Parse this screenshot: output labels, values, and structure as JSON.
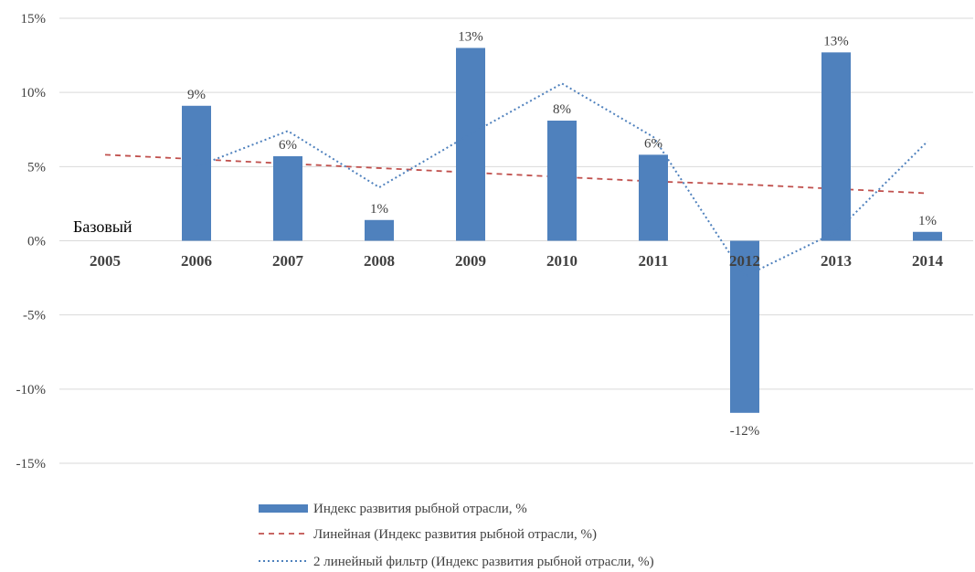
{
  "chart_data": {
    "type": "bar",
    "categories": [
      "2005",
      "2006",
      "2007",
      "2008",
      "2009",
      "2010",
      "2011",
      "2012",
      "2013",
      "2014"
    ],
    "series": [
      {
        "name": "Индекс развития рыбной отрасли, %",
        "type": "bar",
        "color": "#4f81bd",
        "values": [
          null,
          9.1,
          5.7,
          1.4,
          13.0,
          8.1,
          5.8,
          -11.6,
          12.7,
          0.6
        ],
        "data_labels": [
          "",
          "9%",
          "6%",
          "1%",
          "13%",
          "8%",
          "6%",
          "-12%",
          "13%",
          "1%"
        ]
      },
      {
        "name": "Линейная (Индекс развития рыбной отрасли, %)",
        "type": "line",
        "style": "dashed",
        "color": "#c0504d",
        "values": [
          5.8,
          5.5,
          5.2,
          4.9,
          4.6,
          4.3,
          4.0,
          3.8,
          3.5,
          3.2
        ]
      },
      {
        "name": "2 линейный фильтр (Индекс развития рыбной отрасли, %)",
        "type": "line",
        "style": "dotted",
        "color": "#4f81bd",
        "values": [
          null,
          5.0,
          7.4,
          3.6,
          7.2,
          10.6,
          7.0,
          -2.4,
          0.6,
          6.7
        ]
      }
    ],
    "annotation": "Базовый",
    "yticks": [
      "15%",
      "10%",
      "5%",
      "0%",
      "-5%",
      "-10%",
      "-15%"
    ],
    "ylim": [
      -15,
      15
    ],
    "grid": true,
    "legend_position": "bottom"
  }
}
